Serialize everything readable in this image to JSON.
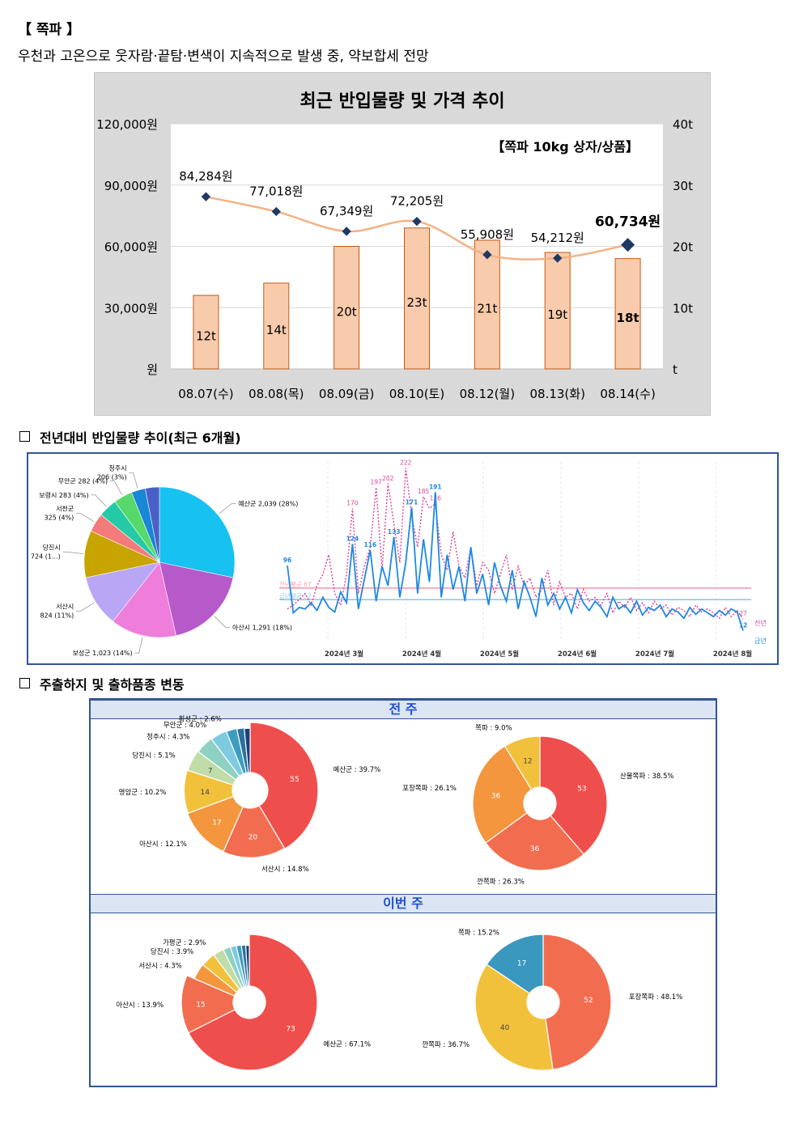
{
  "header": {
    "title": "【 쪽파 】",
    "summary": "우천과 고온으로 웃자람·끝탐·변색이 지속적으로 발생 중, 약보합세 전망"
  },
  "sections": {
    "trend": "전년대비 반입물량 추이(최근 6개월)",
    "regions": "주출하지 및 출하품종 변동"
  },
  "colors": {
    "bar_fill": "#f8cbad",
    "bar_stroke": "#c55a11",
    "price_line": "#f4b183",
    "marker": "#1f3864",
    "last_year": "#e0409a",
    "this_year": "#1e88e5",
    "frame": "#2f5597"
  },
  "chart_data": [
    {
      "id": "price-volume",
      "type": "bar",
      "title": "최근 반입물량 및 가격 추이",
      "subtitle": "【쪽파 10kg 상자/상품】",
      "categories": [
        "08.07(수)",
        "08.08(목)",
        "08.09(금)",
        "08.10(토)",
        "08.12(월)",
        "08.13(화)",
        "08.14(수)"
      ],
      "series": [
        {
          "name": "반입물량",
          "axis": "right",
          "values": [
            12,
            14,
            20,
            23,
            21,
            19,
            18
          ],
          "labels": [
            "12t",
            "14t",
            "20t",
            "23t",
            "21t",
            "19t",
            "18t"
          ]
        },
        {
          "name": "가격",
          "axis": "left",
          "type": "line",
          "values": [
            84284,
            77018,
            67349,
            72205,
            55908,
            54212,
            60734
          ],
          "labels": [
            "84,284원",
            "77,018원",
            "67,349원",
            "72,205원",
            "55,908원",
            "54,212원",
            "60,734원"
          ]
        }
      ],
      "y_left": {
        "ylim": [
          0,
          120000
        ],
        "ticks": [
          "원",
          "30,000원",
          "60,000원",
          "90,000원",
          "120,000원"
        ]
      },
      "y_right": {
        "ylim": [
          0,
          40
        ],
        "ticks": [
          "t",
          "10t",
          "20t",
          "30t",
          "40t"
        ]
      },
      "highlight_last": true
    },
    {
      "id": "origin-share-6m",
      "type": "pie",
      "slices": [
        {
          "label": "예산군 2,039 (28%)",
          "value": 28,
          "color": "#17c1f0"
        },
        {
          "label": "아산시 1,291 (18%)",
          "value": 18,
          "color": "#b659c9"
        },
        {
          "label": "보성군 1,023 (14%)",
          "value": 14,
          "color": "#ee7ddb"
        },
        {
          "label": "서산시 824 (11%)",
          "value": 11,
          "color": "#b9a6f5"
        },
        {
          "label": "당진시 724 (1...)",
          "value": 10,
          "color": "#c8a400"
        },
        {
          "label": "서천군 325 (4%)",
          "value": 4,
          "color": "#f47b7b"
        },
        {
          "label": "보령시 283 (4%)",
          "value": 4,
          "color": "#25c9a6"
        },
        {
          "label": "무안군 282 (4%)",
          "value": 4,
          "color": "#56d96a"
        },
        {
          "label": "청주시 206 (3%)",
          "value": 3,
          "color": "#1a86d6"
        },
        {
          "label": "",
          "value": 3,
          "color": "#4a5fc7"
        }
      ]
    },
    {
      "id": "daily-volume-yoy",
      "type": "line",
      "x_ticks": [
        "2024년 3월",
        "2024년 4월",
        "2024년 5월",
        "2024년 6월",
        "2024년 7월",
        "2024년 8월"
      ],
      "avg_lines": [
        {
          "name": "전년평균",
          "label": "전년평균 67",
          "value": 67,
          "color": "#f39fb0"
        },
        {
          "name": "금년평균",
          "label": "금년평균 52",
          "value": 52,
          "color": "#8fc1ee"
        }
      ],
      "series": [
        {
          "name": "전년",
          "color": "#e0409a",
          "dashed": true,
          "values": [
            40,
            45,
            52,
            60,
            45,
            70,
            85,
            110,
            60,
            45,
            85,
            170,
            60,
            95,
            120,
            197,
            90,
            202,
            150,
            100,
            222,
            160,
            120,
            185,
            170,
            176,
            110,
            90,
            140,
            95,
            80,
            120,
            70,
            100,
            90,
            60,
            85,
            110,
            65,
            95,
            70,
            80,
            55,
            65,
            90,
            45,
            75,
            55,
            60,
            40,
            65,
            50,
            55,
            45,
            60,
            35,
            50,
            42,
            55,
            38,
            48,
            35,
            50,
            40,
            45,
            32,
            42,
            38,
            30,
            45,
            36,
            40,
            35,
            28,
            42,
            30,
            38,
            27
          ],
          "point_labels": [
            {
              "i": 11,
              "text": "170"
            },
            {
              "i": 15,
              "text": "197"
            },
            {
              "i": 17,
              "text": "202"
            },
            {
              "i": 20,
              "text": "222"
            },
            {
              "i": 23,
              "text": "185"
            },
            {
              "i": 25,
              "text": "176"
            },
            {
              "i": 77,
              "text": "27"
            }
          ]
        },
        {
          "name": "금년",
          "color": "#1e88e5",
          "dashed": false,
          "values": [
            96,
            35,
            42,
            40,
            48,
            38,
            55,
            42,
            36,
            62,
            48,
            124,
            40,
            78,
            116,
            50,
            95,
            70,
            133,
            55,
            100,
            171,
            60,
            130,
            75,
            191,
            55,
            110,
            65,
            95,
            50,
            120,
            60,
            85,
            45,
            100,
            70,
            50,
            90,
            40,
            75,
            55,
            30,
            80,
            45,
            60,
            40,
            55,
            35,
            65,
            48,
            38,
            50,
            42,
            30,
            55,
            40,
            45,
            35,
            50,
            32,
            42,
            38,
            45,
            30,
            40,
            36,
            28,
            42,
            33,
            40,
            35,
            30,
            38,
            32,
            40,
            36,
            12
          ],
          "point_labels": [
            {
              "i": 0,
              "text": "96"
            },
            {
              "i": 11,
              "text": "124"
            },
            {
              "i": 14,
              "text": "116"
            },
            {
              "i": 18,
              "text": "133"
            },
            {
              "i": 21,
              "text": "171"
            },
            {
              "i": 25,
              "text": "191"
            },
            {
              "i": 77,
              "text": "12"
            }
          ]
        }
      ],
      "legend": [
        "전년",
        "금년"
      ],
      "ylim": [
        0,
        230
      ]
    },
    {
      "id": "origin-prev-week",
      "type": "pie",
      "donut": true,
      "band": "전 주",
      "slices": [
        {
          "label": "예산군 : 39.7%",
          "value": 55,
          "shown": "55",
          "color": "#ef4f4c"
        },
        {
          "label": "서산시 : 14.8%",
          "value": 20,
          "shown": "20",
          "color": "#f26d4f"
        },
        {
          "label": "아산시 : 12.1%",
          "value": 17,
          "shown": "17",
          "color": "#f3963e"
        },
        {
          "label": "영암군 : 10.2%",
          "value": 14,
          "shown": "14",
          "color": "#f2c13b"
        },
        {
          "label": "당진시 : 5.1%",
          "value": 7,
          "shown": "7",
          "color": "#c0dca9"
        },
        {
          "label": "청주시 : 4.3%",
          "value": 6,
          "shown": "",
          "color": "#8ed1c2"
        },
        {
          "label": "무안군 : 4.0%",
          "value": 5.5,
          "shown": "",
          "color": "#7ecbe0"
        },
        {
          "label": "횡성군 : 2.6%",
          "value": 3.6,
          "shown": "",
          "color": "#3d9cc0"
        },
        {
          "label": "",
          "value": 2.5,
          "shown": "",
          "color": "#2b6f9c"
        },
        {
          "label": "",
          "value": 2,
          "shown": "",
          "color": "#1c3f78"
        }
      ]
    },
    {
      "id": "variety-prev-week",
      "type": "pie",
      "donut": true,
      "band": "전 주",
      "slices": [
        {
          "label": "산물쪽파 : 38.5%",
          "value": 53,
          "shown": "53",
          "color": "#ef4f4c"
        },
        {
          "label": "깐쪽파 : 26.3%",
          "value": 36,
          "shown": "36",
          "color": "#f26d4f"
        },
        {
          "label": "포장쪽파 : 26.1%",
          "value": 36,
          "shown": "36",
          "color": "#f3963e"
        },
        {
          "label": "쪽파 : 9.0%",
          "value": 12,
          "shown": "12",
          "color": "#f2c13b"
        }
      ]
    },
    {
      "id": "origin-this-week",
      "type": "pie",
      "donut": true,
      "band": "이번 주",
      "slices": [
        {
          "label": "예산군 : 67.1%",
          "value": 73,
          "shown": "73",
          "color": "#ef4f4c"
        },
        {
          "label": "아산시 : 13.9%",
          "value": 15,
          "shown": "15",
          "color": "#f26d4f"
        },
        {
          "label": "서산시 : 4.3%",
          "value": 4.7,
          "shown": "",
          "color": "#f3963e"
        },
        {
          "label": "당진시 : 3.9%",
          "value": 4.2,
          "shown": "",
          "color": "#f2c13b"
        },
        {
          "label": "가평군 : 2.9%",
          "value": 3.2,
          "shown": "",
          "color": "#c0dca9"
        },
        {
          "label": "",
          "value": 2.2,
          "shown": "",
          "color": "#8ed1c2"
        },
        {
          "label": "",
          "value": 1.8,
          "shown": "",
          "color": "#7ecbe0"
        },
        {
          "label": "",
          "value": 1.5,
          "shown": "",
          "color": "#3d9cc0"
        },
        {
          "label": "",
          "value": 1.3,
          "shown": "",
          "color": "#2b6f9c"
        },
        {
          "label": "",
          "value": 1.1,
          "shown": "",
          "color": "#1c3f78"
        }
      ]
    },
    {
      "id": "variety-this-week",
      "type": "pie",
      "donut": true,
      "band": "이번 주",
      "slices": [
        {
          "label": "포장쪽파 : 48.1%",
          "value": 52,
          "shown": "52",
          "color": "#f26d4f"
        },
        {
          "label": "깐쪽파 : 36.7%",
          "value": 40,
          "shown": "40",
          "color": "#f2c13b"
        },
        {
          "label": "쪽파 : 15.2%",
          "value": 17,
          "shown": "17",
          "color": "#3a97bd"
        }
      ]
    }
  ]
}
